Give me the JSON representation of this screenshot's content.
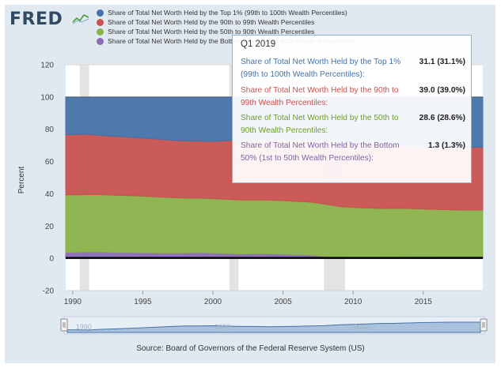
{
  "brand": {
    "logo_text": "FRED"
  },
  "legend": [
    {
      "label": "Share of Total Net Worth Held by the Top 1% (99th to 100th Wealth Percentiles)",
      "color": "#4572a7"
    },
    {
      "label": "Share of Total Net Worth Held by the 90th to 99th Wealth Percentiles",
      "color": "#c85250"
    },
    {
      "label": "Share of Total Net Worth Held by the 50th to 90th Wealth Percentiles",
      "color": "#89b24a"
    },
    {
      "label": "Share of Total Net Worth Held by the Bottom 50% (1st to 50th Wealth Percentiles)",
      "color": "#8b6bb5"
    }
  ],
  "tooltip": {
    "title": "Q1 2019",
    "rows": [
      {
        "label": "Share of Total Net Worth Held by the Top 1% (99th to 100th Wealth Percentiles):",
        "value": "31.1 (31.1%)",
        "color": "#4572a7"
      },
      {
        "label": "Share of Total Net Worth Held by the 90th to 99th Wealth Percentiles:",
        "value": "39.0 (39.0%)",
        "color": "#c85250"
      },
      {
        "label": "Share of Total Net Worth Held by the 50th to 90th Wealth Percentiles:",
        "value": "28.6 (28.6%)",
        "color": "#6e9c2c"
      },
      {
        "label": "Share of Total Net Worth Held by the Bottom 50% (1st to 50th Wealth Percentiles):",
        "value": "1.3 (1.3%)",
        "color": "#7f63a5"
      }
    ]
  },
  "source": "Source: Board of Governors of the Federal Reserve System (US)",
  "navigator": {
    "tick_labels": [
      "1990",
      "2000",
      "2010"
    ]
  },
  "chart_data": {
    "type": "area",
    "stacked": true,
    "ylabel": "Percent",
    "ylim": [
      -20,
      120
    ],
    "yticks": [
      -20,
      0,
      20,
      40,
      60,
      80,
      100,
      120
    ],
    "xlim": [
      1989.5,
      2019.25
    ],
    "xticks": [
      1990,
      1995,
      2000,
      2005,
      2010,
      2015
    ],
    "recessions": [
      [
        1990.5,
        1991.17
      ],
      [
        2001.17,
        2001.83
      ],
      [
        2007.92,
        2009.42
      ]
    ],
    "x": [
      1989.5,
      1990,
      1991,
      1992,
      1993,
      1994,
      1995,
      1996,
      1997,
      1998,
      1999,
      2000,
      2001,
      2002,
      2003,
      2004,
      2005,
      2006,
      2007,
      2008,
      2009,
      2010,
      2011,
      2012,
      2013,
      2014,
      2015,
      2016,
      2017,
      2018,
      2019,
      2019.25
    ],
    "series": [
      {
        "name": "Share of Total Net Worth Held by the Bottom 50% (1st to 50th Wealth Percentiles)",
        "color": "#8b6bb5",
        "values": [
          3.7,
          3.7,
          3.9,
          3.9,
          3.6,
          3.6,
          3.5,
          3.4,
          3.3,
          3.4,
          3.6,
          3.3,
          3.0,
          2.7,
          2.8,
          2.8,
          2.5,
          2.2,
          2.0,
          1.2,
          0.6,
          0.4,
          0.5,
          0.6,
          0.9,
          1.1,
          1.1,
          1.1,
          1.2,
          1.2,
          1.3,
          1.3
        ]
      },
      {
        "name": "Share of Total Net Worth Held by the 50th to 90th Wealth Percentiles",
        "color": "#89b24a",
        "values": [
          35.7,
          35.7,
          35.6,
          35.6,
          35.5,
          35.3,
          35.1,
          34.7,
          34.4,
          34.0,
          33.8,
          33.7,
          33.6,
          33.5,
          33.4,
          33.4,
          33.3,
          33.1,
          32.9,
          32.4,
          31.6,
          31.2,
          30.8,
          30.3,
          30.1,
          29.8,
          29.5,
          29.2,
          28.9,
          28.7,
          28.6,
          28.6
        ]
      },
      {
        "name": "Share of Total Net Worth Held by the 90th to 99th Wealth Percentiles",
        "color": "#c85250",
        "values": [
          37.3,
          37.3,
          37.5,
          36.7,
          36.6,
          36.3,
          36.0,
          35.9,
          35.6,
          35.4,
          35.3,
          35.5,
          36.4,
          37.1,
          37.1,
          37.4,
          37.6,
          37.8,
          37.9,
          38.8,
          39.4,
          39.5,
          39.4,
          39.3,
          39.1,
          38.8,
          38.7,
          38.8,
          38.8,
          39.0,
          39.0,
          39.0
        ]
      },
      {
        "name": "Share of Total Net Worth Held by the Top 1% (99th to 100th Wealth Percentiles)",
        "color": "#4572a7",
        "values": [
          23.3,
          23.3,
          23.0,
          23.8,
          24.3,
          24.8,
          25.4,
          26.0,
          26.7,
          27.2,
          27.3,
          27.5,
          27.0,
          26.7,
          26.7,
          26.4,
          26.6,
          26.9,
          27.2,
          27.6,
          28.4,
          28.9,
          29.3,
          29.8,
          29.9,
          30.3,
          30.7,
          30.9,
          31.1,
          31.1,
          31.1,
          31.1
        ]
      }
    ]
  }
}
